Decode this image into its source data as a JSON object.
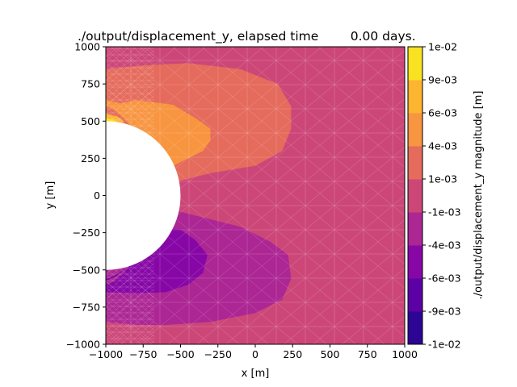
{
  "chart_data": {
    "type": "heatmap",
    "title": "./output/displacement_y, elapsed time        0.00 days.",
    "xlabel": "x [m]",
    "ylabel": "y [m]",
    "xlim": [
      -1000,
      1000
    ],
    "ylim": [
      -1000,
      1000
    ],
    "xticks": [
      -1000,
      -750,
      -500,
      -250,
      0,
      250,
      500,
      750,
      1000
    ],
    "yticks": [
      -1000,
      -750,
      -500,
      -250,
      0,
      250,
      500,
      750,
      1000
    ],
    "grid": false,
    "mesh": "triangulated filled contour (tricontourf)",
    "colormap": "plasma",
    "colorbar": {
      "label": "./output/displacement_y magnitude [m]",
      "ticks": [
        "-1e-02",
        "-9e-03",
        "-6e-03",
        "-4e-03",
        "-1e-03",
        "1e-03",
        "4e-03",
        "6e-03",
        "9e-03",
        "1e-02"
      ],
      "levels": [
        -0.01,
        -0.0078,
        -0.0056,
        -0.0033,
        -0.0011,
        0.0011,
        0.0033,
        0.0056,
        0.0078,
        0.01
      ],
      "colors": [
        "#2c0594",
        "#5c01a6",
        "#8707a6",
        "#ac2694",
        "#cc4778",
        "#e56b5d",
        "#f89540",
        "#fdb42f",
        "#f9e221"
      ]
    },
    "background_level_color": "#cc4778",
    "hole": {
      "center": [
        -1000,
        0
      ],
      "radius": 500
    },
    "contour_regions": [
      {
        "level_range": [
          0.0011,
          0.0033
        ],
        "polygon": [
          [
            -1000,
            850
          ],
          [
            -750,
            875
          ],
          [
            -450,
            890
          ],
          [
            -100,
            850
          ],
          [
            150,
            750
          ],
          [
            240,
            600
          ],
          [
            240,
            450
          ],
          [
            180,
            300
          ],
          [
            0,
            200
          ],
          [
            -300,
            150
          ],
          [
            -500,
            100
          ],
          [
            -650,
            55
          ],
          [
            -750,
            40
          ],
          [
            -780,
            150
          ],
          [
            -820,
            300
          ],
          [
            -870,
            400
          ],
          [
            -940,
            460
          ],
          [
            -1000,
            480
          ]
        ]
      },
      {
        "level_range": [
          0.0033,
          0.0056
        ],
        "polygon": [
          [
            -1000,
            640
          ],
          [
            -900,
            620
          ],
          [
            -800,
            640
          ],
          [
            -700,
            630
          ],
          [
            -550,
            610
          ],
          [
            -400,
            520
          ],
          [
            -300,
            450
          ],
          [
            -300,
            370
          ],
          [
            -350,
            300
          ],
          [
            -450,
            250
          ],
          [
            -550,
            200
          ],
          [
            -650,
            230
          ],
          [
            -720,
            300
          ],
          [
            -770,
            380
          ],
          [
            -820,
            450
          ],
          [
            -880,
            520
          ],
          [
            -950,
            580
          ],
          [
            -1000,
            600
          ]
        ]
      },
      {
        "level_range": [
          0.0056,
          0.0078
        ],
        "polygon": [
          [
            -1000,
            550
          ],
          [
            -960,
            540
          ],
          [
            -920,
            530
          ],
          [
            -880,
            500
          ],
          [
            -900,
            470
          ],
          [
            -940,
            450
          ],
          [
            -1000,
            445
          ]
        ]
      },
      {
        "level_range": [
          0.0078,
          0.01
        ],
        "polygon": [
          [
            -1000,
            520
          ],
          [
            -960,
            510
          ],
          [
            -930,
            500
          ],
          [
            -945,
            480
          ],
          [
            -975,
            465
          ],
          [
            -1000,
            460
          ]
        ]
      },
      {
        "level_range": [
          -0.0033,
          -0.0011
        ],
        "polygon": [
          [
            -1000,
            -480
          ],
          [
            -940,
            -460
          ],
          [
            -870,
            -400
          ],
          [
            -820,
            -300
          ],
          [
            -780,
            -150
          ],
          [
            -750,
            -60
          ],
          [
            -650,
            -80
          ],
          [
            -500,
            -110
          ],
          [
            -300,
            -160
          ],
          [
            -100,
            -210
          ],
          [
            100,
            -310
          ],
          [
            220,
            -400
          ],
          [
            240,
            -560
          ],
          [
            180,
            -700
          ],
          [
            0,
            -790
          ],
          [
            -300,
            -850
          ],
          [
            -600,
            -870
          ],
          [
            -800,
            -870
          ],
          [
            -1000,
            -850
          ]
        ]
      },
      {
        "level_range": [
          -0.0056,
          -0.0033
        ],
        "polygon": [
          [
            -1000,
            -600
          ],
          [
            -950,
            -580
          ],
          [
            -880,
            -520
          ],
          [
            -820,
            -450
          ],
          [
            -770,
            -380
          ],
          [
            -720,
            -300
          ],
          [
            -620,
            -220
          ],
          [
            -500,
            -230
          ],
          [
            -400,
            -300
          ],
          [
            -320,
            -400
          ],
          [
            -350,
            -520
          ],
          [
            -450,
            -600
          ],
          [
            -600,
            -650
          ],
          [
            -800,
            -660
          ],
          [
            -1000,
            -650
          ]
        ]
      },
      {
        "level_range": [
          -0.0078,
          -0.0056
        ],
        "polygon": [
          [
            -1000,
            -560
          ],
          [
            -950,
            -545
          ],
          [
            -880,
            -500
          ],
          [
            -850,
            -480
          ],
          [
            -900,
            -520
          ],
          [
            -950,
            -555
          ],
          [
            -1000,
            -570
          ]
        ]
      }
    ],
    "hole_boundary_gradient": {
      "top": {
        "near_y": 500,
        "level_range": [
          0.0056,
          0.0078
        ]
      },
      "bottom": {
        "near_y": -500,
        "level_range": [
          -0.0078,
          -0.0056
        ]
      }
    }
  }
}
